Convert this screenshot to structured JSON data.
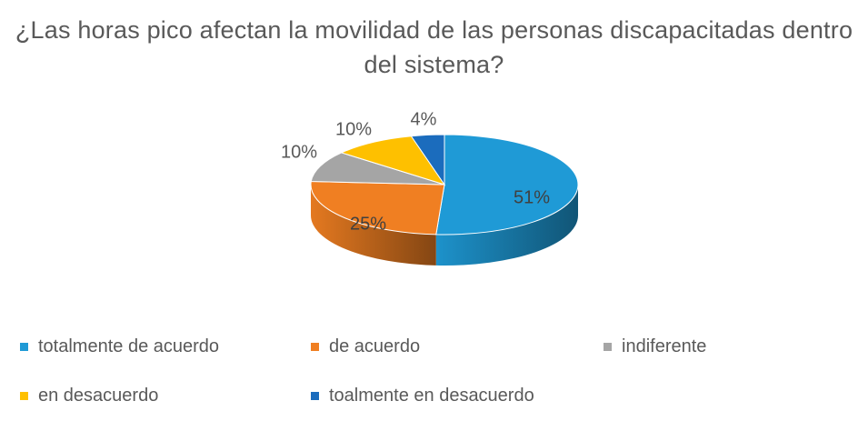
{
  "chart_data": {
    "type": "pie",
    "title": "¿Las horas pico afectan la movilidad de las personas discapacitadas dentro del sistema?",
    "categories": [
      "totalmente de acuerdo",
      "de acuerdo",
      "indiferente",
      "en desacuerdo",
      "toalmente en desacuerdo"
    ],
    "values": [
      51,
      25,
      10,
      10,
      4
    ],
    "data_labels": [
      "51%",
      "25%",
      "10%",
      "10%",
      "4%"
    ],
    "colors": [
      "#1f9ad6",
      "#f07f22",
      "#a5a5a5",
      "#fec000",
      "#1b6cbd"
    ],
    "style": "3d",
    "legend_position": "bottom"
  }
}
